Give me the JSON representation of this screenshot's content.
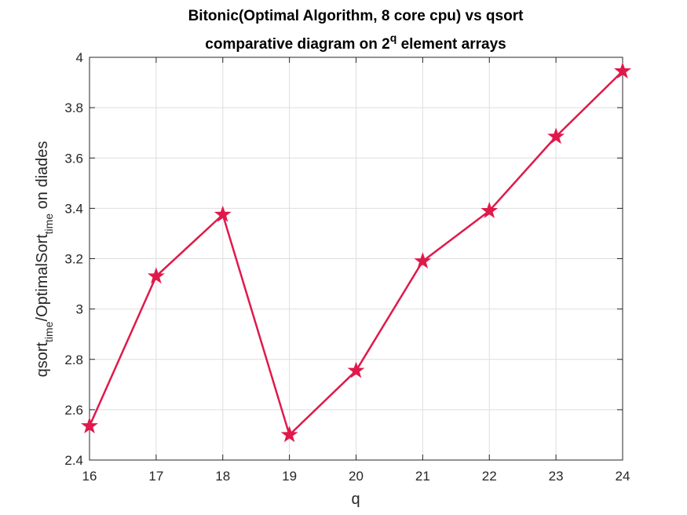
{
  "chart_data": {
    "type": "line",
    "title_line1": "Bitonic(Optimal Algorithm, 8 core cpu) vs qsort",
    "title_line2_prefix": "comparative diagram on 2",
    "title_line2_sup": "q",
    "title_line2_suffix": " element arrays",
    "xlabel": "q",
    "ylabel_parts": {
      "a": "qsort",
      "a_sub": "time",
      "b": "/OptimalSort",
      "b_sub": "time",
      "c": " on diades"
    },
    "xlim": [
      16,
      24
    ],
    "ylim": [
      2.4,
      4.0
    ],
    "xticks": [
      16,
      17,
      18,
      19,
      20,
      21,
      22,
      23,
      24
    ],
    "yticks": [
      "2.4",
      "2.6",
      "2.8",
      "3",
      "3.2",
      "3.4",
      "3.6",
      "3.8",
      "4"
    ],
    "grid": true,
    "marker": "star",
    "color": "#e0194b",
    "x": [
      16,
      17,
      18,
      19,
      20,
      21,
      22,
      23,
      24
    ],
    "y": [
      2.535,
      3.13,
      3.375,
      2.5,
      2.755,
      3.19,
      3.39,
      3.685,
      3.945
    ]
  }
}
